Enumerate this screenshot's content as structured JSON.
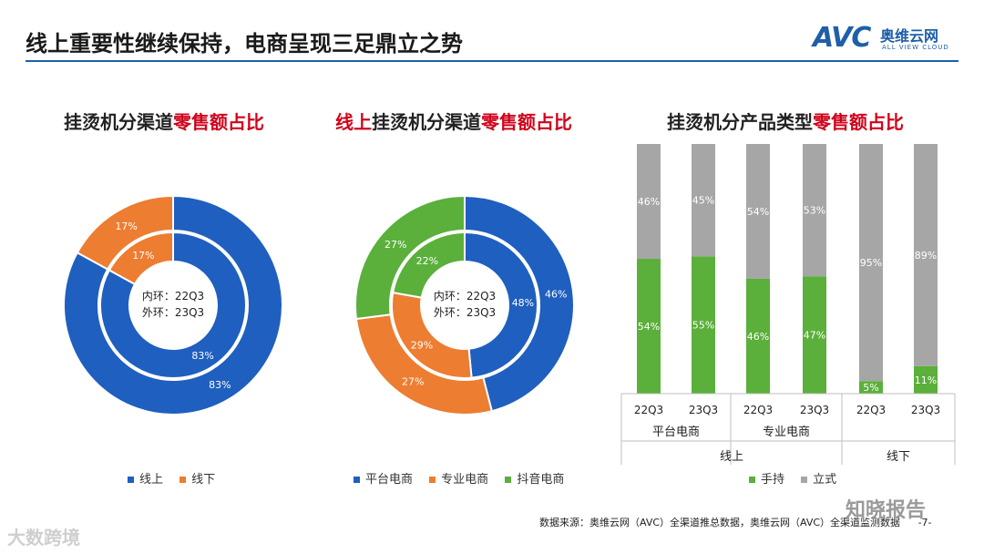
{
  "page": {
    "title": "线上重要性继续保持，电商呈现三足鼎立之势",
    "logo_text": "AVC",
    "logo_cn": "奥维云网",
    "logo_en": "ALL VIEW CLOUD",
    "footer": "数据来源：奥维云网（AVC）全渠道推总数据，奥维云网（AVC）全渠道监测数据",
    "page_num": "-7-",
    "watermark_left": "大数跨境",
    "watermark_right": "知晓报告"
  },
  "colors": {
    "blue": "#1f5fbf",
    "orange": "#ed7d31",
    "green": "#5ab03a",
    "gray": "#a6a6a6",
    "accent_red": "#d0021b"
  },
  "chart_data": [
    {
      "type": "pie",
      "subtype": "double-donut",
      "title_parts": [
        "挂烫机分渠道",
        "零售额占比"
      ],
      "center_text": [
        "内环：22Q3",
        "外环：23Q3"
      ],
      "categories": [
        "线上",
        "线下"
      ],
      "series": [
        {
          "name": "22Q3",
          "ring": "inner",
          "values": [
            83,
            17
          ],
          "labels": [
            "83%",
            "17%"
          ]
        },
        {
          "name": "23Q3",
          "ring": "outer",
          "values": [
            83,
            17
          ],
          "labels": [
            "83%",
            "17%"
          ]
        }
      ],
      "legend": [
        "线上",
        "线下"
      ]
    },
    {
      "type": "pie",
      "subtype": "double-donut",
      "title_parts": [
        "线上",
        "挂烫机分渠道",
        "零售额占比"
      ],
      "center_text": [
        "内环：22Q3",
        "外环：23Q3"
      ],
      "categories": [
        "平台电商",
        "专业电商",
        "抖音电商"
      ],
      "series": [
        {
          "name": "22Q3",
          "ring": "inner",
          "values": [
            48,
            29,
            22
          ],
          "labels": [
            "48%",
            "29%",
            "22%"
          ]
        },
        {
          "name": "23Q3",
          "ring": "outer",
          "values": [
            46,
            27,
            27
          ],
          "labels": [
            "46%",
            "27%",
            "27%"
          ]
        }
      ],
      "legend": [
        "平台电商",
        "专业电商",
        "抖音电商"
      ]
    },
    {
      "type": "bar",
      "subtype": "stacked-100",
      "title_parts": [
        "挂烫机分产品类型",
        "零售额占比"
      ],
      "categories": [
        "22Q3",
        "23Q3",
        "22Q3",
        "23Q3",
        "22Q3",
        "23Q3"
      ],
      "groups": [
        "平台电商",
        "专业电商",
        "线下"
      ],
      "channel_groups": [
        "线上",
        "线下"
      ],
      "series": [
        {
          "name": "手持",
          "values": [
            54,
            55,
            46,
            47,
            5,
            11
          ],
          "labels": [
            "54%",
            "55%",
            "46%",
            "47%",
            "5%",
            "11%"
          ]
        },
        {
          "name": "立式",
          "values": [
            46,
            45,
            54,
            53,
            95,
            89
          ],
          "labels": [
            "46%",
            "45%",
            "54%",
            "53%",
            "95%",
            "89%"
          ]
        }
      ],
      "ylim": [
        0,
        100
      ],
      "legend": [
        "手持",
        "立式"
      ]
    }
  ]
}
